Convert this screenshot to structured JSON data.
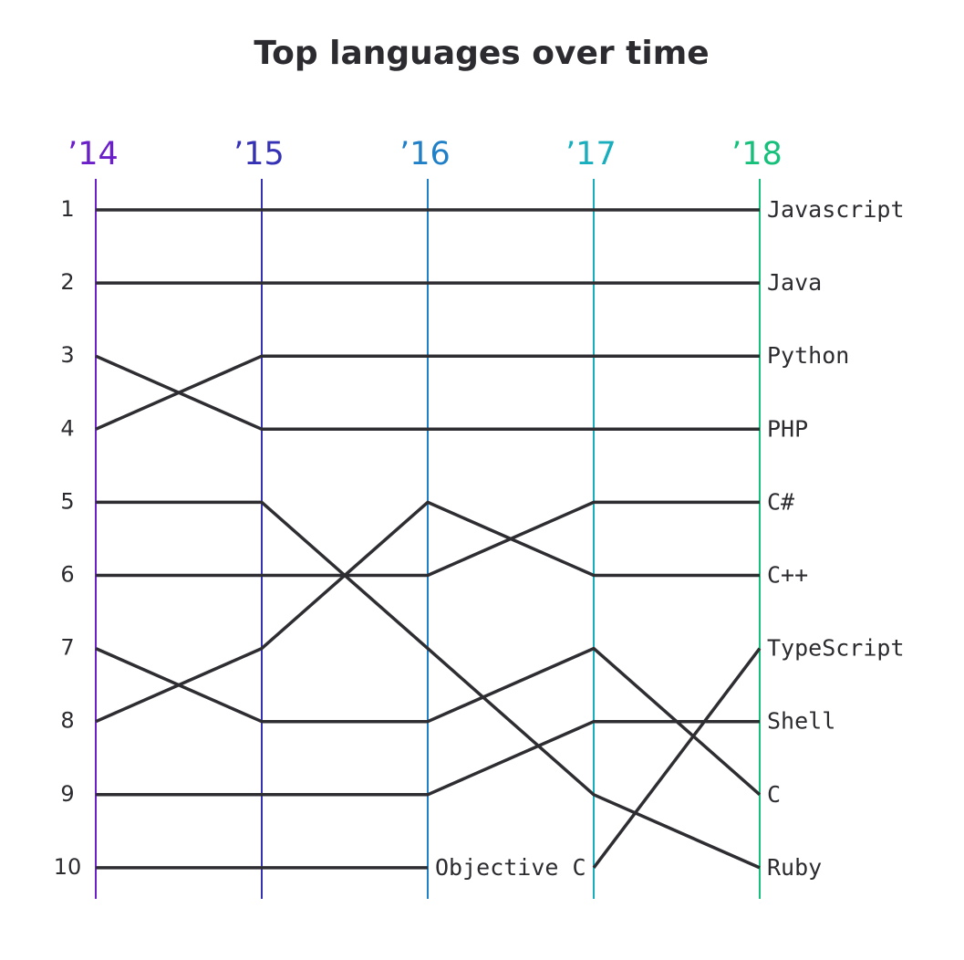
{
  "chart_data": {
    "type": "line",
    "title": "Top languages over time",
    "xlabel": "",
    "ylabel": "",
    "x": [
      "’14",
      "’15",
      "’16",
      "’17",
      "’18"
    ],
    "year_colors": [
      "#6a1fc9",
      "#3531b5",
      "#1f7fc7",
      "#19aebe",
      "#16c07a"
    ],
    "ranks": [
      1,
      2,
      3,
      4,
      5,
      6,
      7,
      8,
      9,
      10
    ],
    "y_inverted": true,
    "ylim": [
      1,
      10
    ],
    "line_color": "#2e2e32",
    "series": [
      {
        "name": "Javascript",
        "values": [
          1,
          1,
          1,
          1,
          1
        ]
      },
      {
        "name": "Java",
        "values": [
          2,
          2,
          2,
          2,
          2
        ]
      },
      {
        "name": "Python",
        "values": [
          4,
          3,
          3,
          3,
          3
        ]
      },
      {
        "name": "PHP",
        "values": [
          3,
          4,
          4,
          4,
          4
        ]
      },
      {
        "name": "C++",
        "values": [
          8,
          7,
          5,
          6,
          6
        ]
      },
      {
        "name": "C#",
        "values": [
          6,
          6,
          6,
          5,
          5
        ]
      },
      {
        "name": "TypeScript",
        "values": [
          null,
          null,
          null,
          10,
          7
        ]
      },
      {
        "name": "Shell",
        "values": [
          9,
          9,
          9,
          8,
          8
        ]
      },
      {
        "name": "C",
        "values": [
          7,
          8,
          8,
          7,
          9
        ]
      },
      {
        "name": "Ruby",
        "values": [
          5,
          5,
          7,
          9,
          10
        ]
      },
      {
        "name": "Objective C",
        "values": [
          10,
          10,
          10,
          null,
          null
        ]
      }
    ],
    "grid": false,
    "legend": "none"
  }
}
